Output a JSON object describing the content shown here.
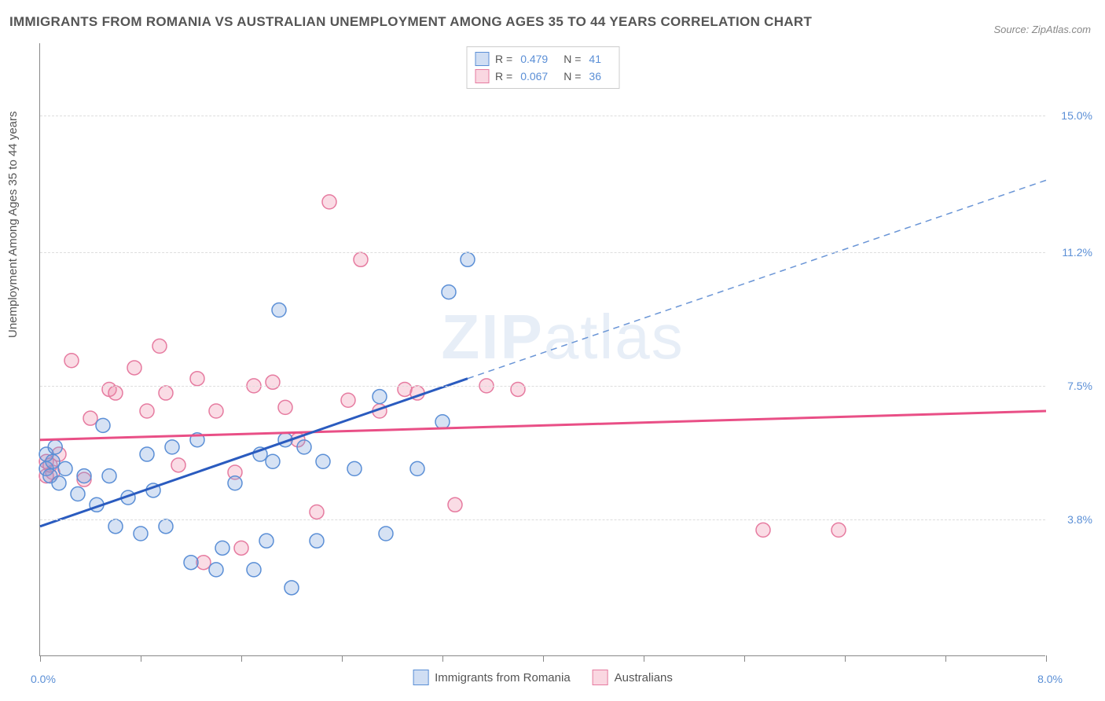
{
  "title": "IMMIGRANTS FROM ROMANIA VS AUSTRALIAN UNEMPLOYMENT AMONG AGES 35 TO 44 YEARS CORRELATION CHART",
  "source": "Source: ZipAtlas.com",
  "y_axis_label": "Unemployment Among Ages 35 to 44 years",
  "watermark_a": "ZIP",
  "watermark_b": "atlas",
  "chart": {
    "type": "scatter",
    "xlim": [
      0,
      8
    ],
    "ylim": [
      0,
      17
    ],
    "background_color": "#ffffff",
    "grid_color": "#dddddd",
    "y_ticks": [
      {
        "v": 3.8,
        "label": "3.8%"
      },
      {
        "v": 7.5,
        "label": "7.5%"
      },
      {
        "v": 11.2,
        "label": "11.2%"
      },
      {
        "v": 15.0,
        "label": "15.0%"
      }
    ],
    "x_ticks_minor": [
      0,
      0.8,
      1.6,
      2.4,
      3.2,
      4.0,
      4.8,
      5.6,
      6.4,
      7.2,
      8.0
    ],
    "x_tick_left_label": "0.0%",
    "x_tick_right_label": "8.0%",
    "series_blue": {
      "color_fill": "rgba(120,160,220,0.30)",
      "color_stroke": "#5b8fd6",
      "marker_r": 9,
      "trend_color": "#2a5bbf",
      "trend_width": 3,
      "trend_dash_color": "#6a95d6",
      "trend": {
        "x1": 0,
        "y1": 3.6,
        "x2": 3.4,
        "y2": 7.7,
        "x3": 8.0,
        "y3": 13.2
      },
      "points": [
        {
          "x": 0.05,
          "y": 5.6
        },
        {
          "x": 0.05,
          "y": 5.2
        },
        {
          "x": 0.08,
          "y": 5.0
        },
        {
          "x": 0.1,
          "y": 5.4
        },
        {
          "x": 0.12,
          "y": 5.8
        },
        {
          "x": 0.15,
          "y": 4.8
        },
        {
          "x": 0.2,
          "y": 5.2
        },
        {
          "x": 0.3,
          "y": 4.5
        },
        {
          "x": 0.35,
          "y": 5.0
        },
        {
          "x": 0.45,
          "y": 4.2
        },
        {
          "x": 0.5,
          "y": 6.4
        },
        {
          "x": 0.55,
          "y": 5.0
        },
        {
          "x": 0.6,
          "y": 3.6
        },
        {
          "x": 0.7,
          "y": 4.4
        },
        {
          "x": 0.8,
          "y": 3.4
        },
        {
          "x": 0.85,
          "y": 5.6
        },
        {
          "x": 0.9,
          "y": 4.6
        },
        {
          "x": 1.0,
          "y": 3.6
        },
        {
          "x": 1.05,
          "y": 5.8
        },
        {
          "x": 1.2,
          "y": 2.6
        },
        {
          "x": 1.25,
          "y": 6.0
        },
        {
          "x": 1.4,
          "y": 2.4
        },
        {
          "x": 1.45,
          "y": 3.0
        },
        {
          "x": 1.55,
          "y": 4.8
        },
        {
          "x": 1.7,
          "y": 2.4
        },
        {
          "x": 1.75,
          "y": 5.6
        },
        {
          "x": 1.8,
          "y": 3.2
        },
        {
          "x": 1.85,
          "y": 5.4
        },
        {
          "x": 1.9,
          "y": 9.6
        },
        {
          "x": 1.95,
          "y": 6.0
        },
        {
          "x": 2.1,
          "y": 5.8
        },
        {
          "x": 2.2,
          "y": 3.2
        },
        {
          "x": 2.25,
          "y": 5.4
        },
        {
          "x": 2.5,
          "y": 5.2
        },
        {
          "x": 2.7,
          "y": 7.2
        },
        {
          "x": 2.75,
          "y": 3.4
        },
        {
          "x": 3.0,
          "y": 5.2
        },
        {
          "x": 3.2,
          "y": 6.5
        },
        {
          "x": 3.25,
          "y": 10.1
        },
        {
          "x": 3.4,
          "y": 11.0
        },
        {
          "x": 2.0,
          "y": 1.9
        }
      ]
    },
    "series_pink": {
      "color_fill": "rgba(240,140,170,0.30)",
      "color_stroke": "#e67ba0",
      "marker_r": 9,
      "trend_color": "#e94f86",
      "trend_width": 3,
      "trend": {
        "x1": 0,
        "y1": 6.0,
        "x2": 8.0,
        "y2": 6.8
      },
      "points": [
        {
          "x": 0.05,
          "y": 5.4
        },
        {
          "x": 0.1,
          "y": 5.1
        },
        {
          "x": 0.15,
          "y": 5.6
        },
        {
          "x": 0.25,
          "y": 8.2
        },
        {
          "x": 0.35,
          "y": 4.9
        },
        {
          "x": 0.4,
          "y": 6.6
        },
        {
          "x": 0.55,
          "y": 7.4
        },
        {
          "x": 0.6,
          "y": 7.3
        },
        {
          "x": 0.75,
          "y": 8.0
        },
        {
          "x": 0.85,
          "y": 6.8
        },
        {
          "x": 0.95,
          "y": 8.6
        },
        {
          "x": 1.0,
          "y": 7.3
        },
        {
          "x": 1.1,
          "y": 5.3
        },
        {
          "x": 1.25,
          "y": 7.7
        },
        {
          "x": 1.3,
          "y": 2.6
        },
        {
          "x": 1.4,
          "y": 6.8
        },
        {
          "x": 1.55,
          "y": 5.1
        },
        {
          "x": 1.6,
          "y": 3.0
        },
        {
          "x": 1.7,
          "y": 7.5
        },
        {
          "x": 1.85,
          "y": 7.6
        },
        {
          "x": 1.95,
          "y": 6.9
        },
        {
          "x": 2.05,
          "y": 6.0
        },
        {
          "x": 2.2,
          "y": 4.0
        },
        {
          "x": 2.3,
          "y": 12.6
        },
        {
          "x": 2.45,
          "y": 7.1
        },
        {
          "x": 2.55,
          "y": 11.0
        },
        {
          "x": 2.7,
          "y": 6.8
        },
        {
          "x": 2.9,
          "y": 7.4
        },
        {
          "x": 3.0,
          "y": 7.3
        },
        {
          "x": 3.3,
          "y": 4.2
        },
        {
          "x": 3.55,
          "y": 7.5
        },
        {
          "x": 3.8,
          "y": 7.4
        },
        {
          "x": 5.75,
          "y": 3.5
        },
        {
          "x": 6.35,
          "y": 3.5
        },
        {
          "x": 0.05,
          "y": 5.0
        },
        {
          "x": 0.08,
          "y": 5.3
        }
      ]
    }
  },
  "legend_top": {
    "r_label": "R =",
    "n_label": "N =",
    "rows": [
      {
        "color": "blue",
        "r": "0.479",
        "n": "41"
      },
      {
        "color": "pink",
        "r": "0.067",
        "n": "36"
      }
    ]
  },
  "legend_bottom": [
    {
      "color": "blue",
      "label": "Immigrants from Romania"
    },
    {
      "color": "pink",
      "label": "Australians"
    }
  ]
}
